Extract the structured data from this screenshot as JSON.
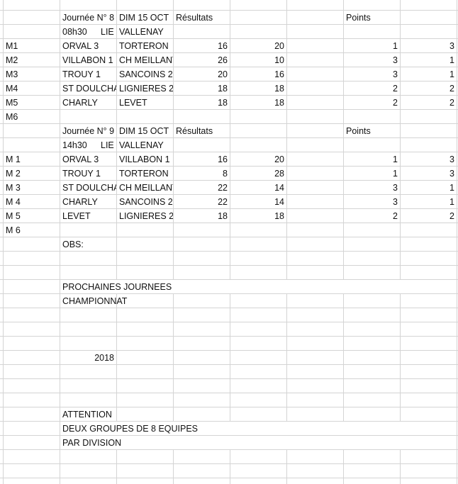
{
  "sheet": {
    "rows": [
      [
        "",
        "Journée N° 8",
        "DIM 15 OCT",
        "Résultats",
        "",
        "",
        "Points",
        ""
      ],
      [
        "",
        "08h30",
        "VALLENAY",
        "",
        "",
        "",
        "",
        ""
      ],
      [
        "M1",
        "ORVAL 3",
        "TORTERON",
        "16",
        "20",
        "",
        "1",
        "3"
      ],
      [
        "M2",
        "VILLABON 1",
        "CH MEILLANT",
        "26",
        "10",
        "",
        "3",
        "1"
      ],
      [
        "M3",
        "TROUY 1",
        "SANCOINS 2",
        "20",
        "16",
        "",
        "3",
        "1"
      ],
      [
        "M4",
        "ST DOULCHARD",
        "LIGNIERES 2",
        "18",
        "18",
        "",
        "2",
        "2"
      ],
      [
        "M5",
        "CHARLY",
        "LEVET",
        "18",
        "18",
        "",
        "2",
        "2"
      ],
      [
        "M6",
        "",
        "",
        "",
        "",
        "",
        "",
        ""
      ],
      [
        "",
        "Journée N° 9",
        "DIM 15 OCT",
        "Résultats",
        "",
        "",
        "Points",
        ""
      ],
      [
        "",
        "14h30",
        "VALLENAY",
        "",
        "",
        "",
        "",
        ""
      ],
      [
        "M 1",
        "ORVAL 3",
        "VILLABON 1",
        "16",
        "20",
        "",
        "1",
        "3"
      ],
      [
        "M 2",
        "TROUY 1",
        "TORTERON",
        "8",
        "28",
        "",
        "1",
        "3"
      ],
      [
        "M 3",
        "ST DOULCHARD",
        "CH MEILLANT",
        "22",
        "14",
        "",
        "3",
        "1"
      ],
      [
        "M 4",
        "CHARLY",
        "SANCOINS 2",
        "22",
        "14",
        "",
        "3",
        "1"
      ],
      [
        "M 5",
        "LEVET",
        "LIGNIERES 2",
        "18",
        "18",
        "",
        "2",
        "2"
      ],
      [
        "M 6",
        "",
        "",
        "",
        "",
        "",
        "",
        ""
      ],
      [
        "",
        "OBS:",
        "",
        "",
        "",
        "",
        "",
        ""
      ],
      [
        "",
        "",
        "",
        "",
        "",
        "",
        "",
        ""
      ],
      [
        "",
        "",
        "",
        "",
        "",
        "",
        "",
        ""
      ],
      [
        "",
        "PROCHAINES JOURNEES",
        "",
        "",
        "",
        "",
        "",
        ""
      ],
      [
        "",
        "CHAMPIONNAT",
        "",
        "",
        "",
        "",
        "",
        ""
      ],
      [
        "",
        "",
        "",
        "",
        "",
        "",
        "",
        ""
      ],
      [
        "",
        "",
        "",
        "",
        "",
        "",
        "",
        ""
      ],
      [
        "",
        "",
        "",
        "",
        "",
        "",
        "",
        ""
      ],
      [
        "",
        "2018",
        "",
        "",
        "",
        "",
        "",
        ""
      ],
      [
        "",
        "",
        "",
        "",
        "",
        "",
        "",
        ""
      ],
      [
        "",
        "",
        "",
        "",
        "",
        "",
        "",
        ""
      ],
      [
        "",
        "",
        "",
        "",
        "",
        "",
        "",
        ""
      ],
      [
        "",
        "ATTENTION",
        "",
        "",
        "",
        "",
        "",
        ""
      ],
      [
        "",
        "DEUX GROUPES DE 8 EQUIPES",
        "",
        "",
        "",
        "",
        "",
        ""
      ],
      [
        "",
        "PAR DIVISION",
        "",
        "",
        "",
        "",
        "",
        ""
      ]
    ],
    "lieu_labels": {
      "1": "LIE",
      "9": "LIE"
    }
  }
}
